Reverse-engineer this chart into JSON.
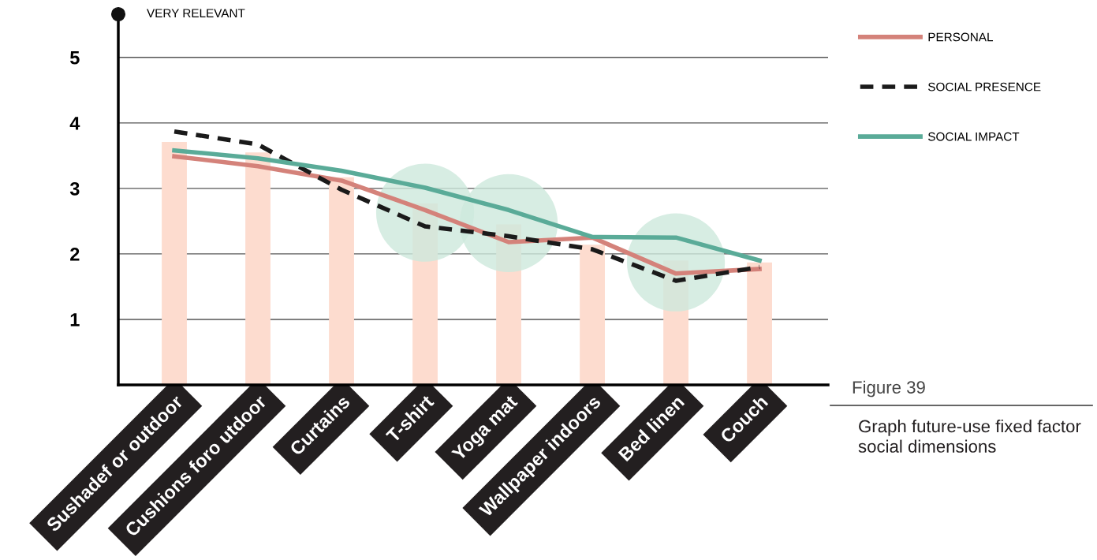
{
  "chart_data": {
    "type": "line",
    "categories": [
      "Sushadef or outdoor",
      "Cushions foro utdoor",
      "Curtains",
      "T-shirt",
      "Yoga mat",
      "Wallpaper indoors",
      "Bed linen",
      "Couch"
    ],
    "series": [
      {
        "type": "bar",
        "color": "#fddccf",
        "values": [
          3.71,
          3.55,
          3.17,
          2.77,
          2.45,
          2.14,
          1.9,
          1.87
        ]
      },
      {
        "type": "scatter",
        "marker": "circle",
        "color": "#cde8dc",
        "values": [
          null,
          null,
          null,
          2.63,
          2.47,
          null,
          1.87,
          null
        ]
      },
      {
        "name": "PERSONAL",
        "color": "#d4827a",
        "line_style": "solid",
        "values": [
          3.49,
          3.34,
          3.12,
          2.67,
          2.18,
          2.25,
          1.7,
          1.77
        ]
      },
      {
        "name": "SOCIAL PRESENCE",
        "color": "#1a1a1a",
        "line_style": "dashed",
        "values": [
          3.87,
          3.67,
          2.98,
          2.42,
          2.27,
          2.07,
          1.59,
          1.8
        ]
      },
      {
        "name": "SOCIAL IMPACT",
        "color": "#5aab98",
        "line_style": "solid",
        "values": [
          3.58,
          3.46,
          3.27,
          3.01,
          2.67,
          2.26,
          2.25,
          1.9
        ]
      }
    ],
    "ylim": [
      0,
      5.66
    ],
    "yticks": [
      1,
      2,
      3,
      4,
      5
    ],
    "grid": "y",
    "legend": "right",
    "annotations": [
      "VERY RELEVANT",
      "Figure 39",
      "Graph future-use fixed factor social dimensions"
    ]
  }
}
